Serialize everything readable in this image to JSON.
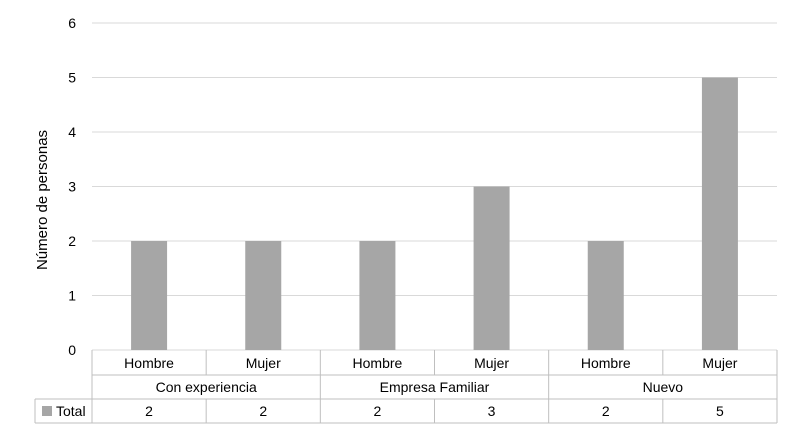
{
  "chart_data": {
    "type": "bar",
    "title": "",
    "ylabel": "Número de personas",
    "xlabel": "",
    "ylim": [
      0,
      6
    ],
    "yticks": [
      0,
      1,
      2,
      3,
      4,
      5,
      6
    ],
    "grid": true,
    "legend": "data-table-left",
    "groups": [
      {
        "name": "Con experiencia",
        "categories": [
          "Hombre",
          "Mujer"
        ]
      },
      {
        "name": "Empresa Familiar",
        "categories": [
          "Hombre",
          "Mujer"
        ]
      },
      {
        "name": "Nuevo",
        "categories": [
          "Hombre",
          "Mujer"
        ]
      }
    ],
    "categories": [
      "Hombre",
      "Mujer",
      "Hombre",
      "Mujer",
      "Hombre",
      "Mujer"
    ],
    "series": [
      {
        "name": "Total",
        "values": [
          2,
          2,
          2,
          3,
          2,
          5
        ],
        "color": "#a6a6a6"
      }
    ]
  },
  "colors": {
    "bar": "#a6a6a6",
    "grid": "#d9d9d9",
    "table_border": "#bfbfbf"
  }
}
